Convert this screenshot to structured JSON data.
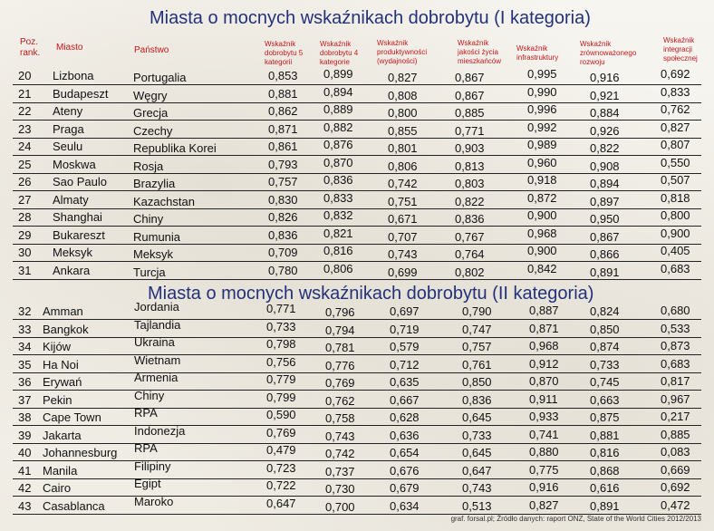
{
  "title_1": "Miasta o mocnych wskaźnikach dobrobytu (I kategoria)",
  "title_2": "Miasta o mocnych wskaźnikach dobrobytu (II kategoria)",
  "headers": {
    "rank": "Poz. rank.",
    "city": "Miasto",
    "country": "Państwo",
    "w5": "Wskaźnik dobrobytu 5 kategorii",
    "w4": "Wskaźnik dobrobytu 4 kategorie",
    "prod": "Wskaźnik produktywności (wydajności)",
    "life": "Wskaźnik jakości życia mieszkańców",
    "infra": "Wskaźnik infrastruktury",
    "sust": "Wskaźnik zrównoważonego rozwoju",
    "integ": "Wskaźnik integracji społecznej"
  },
  "table1": [
    [
      "20",
      "Lizbona",
      "Portugalia",
      "0,853",
      "0,899",
      "0,827",
      "0,867",
      "0,995",
      "0,916",
      "0,692"
    ],
    [
      "21",
      "Budapeszt",
      "Węgry",
      "0,881",
      "0,894",
      "0,808",
      "0,867",
      "0,990",
      "0,921",
      "0,833"
    ],
    [
      "22",
      "Ateny",
      "Grecja",
      "0,862",
      "0,889",
      "0,800",
      "0,885",
      "0,996",
      "0,884",
      "0,762"
    ],
    [
      "23",
      "Praga",
      "Czechy",
      "0,871",
      "0,882",
      "0,855",
      "0,771",
      "0,992",
      "0,926",
      "0,827"
    ],
    [
      "24",
      "Seulu",
      "Republika Korei",
      "0,861",
      "0,876",
      "0,801",
      "0,903",
      "0,989",
      "0,822",
      "0,807"
    ],
    [
      "25",
      "Moskwa",
      "Rosja",
      "0,793",
      "0,870",
      "0,806",
      "0,813",
      "0,960",
      "0,908",
      "0,550"
    ],
    [
      "26",
      "Sao Paulo",
      "Brazylia",
      "0,757",
      "0,836",
      "0,742",
      "0,803",
      "0,918",
      "0,894",
      "0,507"
    ],
    [
      "27",
      "Almaty",
      "Kazachstan",
      "0,830",
      "0,833",
      "0,751",
      "0,822",
      "0,872",
      "0,897",
      "0,818"
    ],
    [
      "28",
      "Shanghai",
      "Chiny",
      "0,826",
      "0,832",
      "0,671",
      "0,836",
      "0,900",
      "0,950",
      "0,800"
    ],
    [
      "29",
      "Bukareszt",
      "Rumunia",
      "0,836",
      "0,821",
      "0,707",
      "0,767",
      "0,968",
      "0,867",
      "0,900"
    ],
    [
      "30",
      "Meksyk",
      "Meksyk",
      "0,709",
      "0,816",
      "0,743",
      "0,764",
      "0,900",
      "0,866",
      "0,405"
    ],
    [
      "31",
      "Ankara",
      "Turcja",
      "0,780",
      "0,806",
      "0,699",
      "0,802",
      "0,842",
      "0,891",
      "0,683"
    ]
  ],
  "table2": [
    [
      "32",
      "Amman",
      "Jordania",
      "0,771",
      "0,796",
      "0,697",
      "0,790",
      "0,887",
      "0,824",
      "0,680"
    ],
    [
      "33",
      "Bangkok",
      "Tajlandia",
      "0,733",
      "0,794",
      "0,719",
      "0,747",
      "0,871",
      "0,850",
      "0,533"
    ],
    [
      "34",
      "Kijów",
      "Ukraina",
      "0,798",
      "0,781",
      "0,579",
      "0,757",
      "0,968",
      "0,874",
      "0,873"
    ],
    [
      "35",
      "Ha Noi",
      "Wietnam",
      "0,756",
      "0,776",
      "0,712",
      "0,761",
      "0,912",
      "0,733",
      "0,683"
    ],
    [
      "36",
      "Erywań",
      "Armenia",
      "0,779",
      "0,769",
      "0,635",
      "0,850",
      "0,870",
      "0,745",
      "0,817"
    ],
    [
      "37",
      "Pekin",
      "Chiny",
      "0,799",
      "0,762",
      "0,667",
      "0,836",
      "0,911",
      "0,663",
      "0,967"
    ],
    [
      "38",
      "Cape Town",
      "RPA",
      "0,590",
      "0,758",
      "0,628",
      "0,645",
      "0,933",
      "0,875",
      "0,217"
    ],
    [
      "39",
      "Jakarta",
      "Indonezja",
      "0,769",
      "0,743",
      "0,636",
      "0,733",
      "0,741",
      "0,881",
      "0,885"
    ],
    [
      "40",
      "Johannesburg",
      "RPA",
      "0,479",
      "0,742",
      "0,654",
      "0,645",
      "0,880",
      "0,816",
      "0,083"
    ],
    [
      "41",
      "Manila",
      "Filipiny",
      "0,723",
      "0,737",
      "0,676",
      "0,647",
      "0,775",
      "0,868",
      "0,669"
    ],
    [
      "42",
      "Cairo",
      "Egipt",
      "0,722",
      "0,730",
      "0,679",
      "0,743",
      "0,916",
      "0,616",
      "0,692"
    ],
    [
      "43",
      "Casablanca",
      "Maroko",
      "0,647",
      "0,700",
      "0,634",
      "0,513",
      "0,827",
      "0,891",
      "0,472"
    ]
  ],
  "footer": "graf. forsal.pl; Źródło danych: raport ONZ, State of the World Cities 2012/2013",
  "colors": {
    "title": "#23317a",
    "header": "#c4161c"
  }
}
